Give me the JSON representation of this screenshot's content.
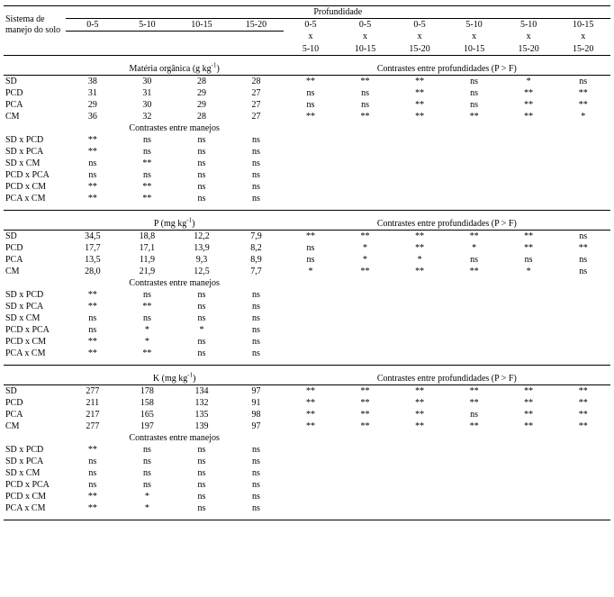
{
  "layout": {
    "columns": [
      "label",
      "d1",
      "d2",
      "d3",
      "d4",
      "c1",
      "c2",
      "c3",
      "c4",
      "c5",
      "c6"
    ],
    "col_widths": {
      "label": 68,
      "d": 60,
      "c": 60
    },
    "border_color": "#000000",
    "bg": "#ffffff",
    "font_family": "Times New Roman",
    "base_fontsize": 10
  },
  "header": {
    "rowspan_label": "Sistema de manejo do solo",
    "top": "Profundidade",
    "depths": [
      "0-5",
      "5-10",
      "10-15",
      "15-20",
      "0-5",
      "0-5",
      "0-5",
      "5-10",
      "5-10",
      "10-15"
    ],
    "x": [
      "",
      "",
      "",
      "",
      "x",
      "x",
      "x",
      "x",
      "x",
      "x"
    ],
    "depth_pairs": [
      "",
      "",
      "",
      "",
      "5-10",
      "10-15",
      "15-20",
      "10-15",
      "15-20",
      "15-20"
    ]
  },
  "sections": [
    {
      "left_title": "Matéria orgânica (g kg",
      "left_title_sup": "-1",
      "left_title_end": ")",
      "right_title": "Contrastes entre profundidades (P > F)",
      "data_rows": [
        {
          "label": "SD",
          "vals": [
            "38",
            "30",
            "28",
            "28"
          ],
          "con": [
            "**",
            "**",
            "**",
            "ns",
            "*",
            "ns"
          ]
        },
        {
          "label": "PCD",
          "vals": [
            "31",
            "31",
            "29",
            "27"
          ],
          "con": [
            "ns",
            "ns",
            "**",
            "ns",
            "**",
            "**"
          ]
        },
        {
          "label": "PCA",
          "vals": [
            "29",
            "30",
            "29",
            "27"
          ],
          "con": [
            "ns",
            "ns",
            "**",
            "ns",
            "**",
            "**"
          ]
        },
        {
          "label": "CM",
          "vals": [
            "36",
            "32",
            "28",
            "27"
          ],
          "con": [
            "**",
            "**",
            "**",
            "**",
            "**",
            "*"
          ]
        }
      ],
      "contrast_title": "Contrastes entre manejos",
      "contrast_rows": [
        {
          "label": "SD x PCD",
          "vals": [
            "**",
            "ns",
            "ns",
            "ns"
          ]
        },
        {
          "label": "SD x PCA",
          "vals": [
            "**",
            "ns",
            "ns",
            "ns"
          ]
        },
        {
          "label": "SD x CM",
          "vals": [
            "ns",
            "**",
            "ns",
            "ns"
          ]
        },
        {
          "label": "PCD x PCA",
          "vals": [
            "ns",
            "ns",
            "ns",
            "ns"
          ]
        },
        {
          "label": "PCD x CM",
          "vals": [
            "**",
            "**",
            "ns",
            "ns"
          ]
        },
        {
          "label": "PCA x CM",
          "vals": [
            "**",
            "**",
            "ns",
            "ns"
          ]
        }
      ]
    },
    {
      "left_title": "P (mg kg",
      "left_title_sup": "-1",
      "left_title_end": ")",
      "right_title": "Contrastes entre profundidades (P > F)",
      "data_rows": [
        {
          "label": "SD",
          "vals": [
            "34,5",
            "18,8",
            "12,2",
            "7,9"
          ],
          "con": [
            "**",
            "**",
            "**",
            "**",
            "**",
            "ns"
          ]
        },
        {
          "label": "PCD",
          "vals": [
            "17,7",
            "17,1",
            "13,9",
            "8,2"
          ],
          "con": [
            "ns",
            "*",
            "**",
            "*",
            "**",
            "**"
          ]
        },
        {
          "label": "PCA",
          "vals": [
            "13,5",
            "11,9",
            "9,3",
            "8,9"
          ],
          "con": [
            "ns",
            "*",
            "*",
            "ns",
            "ns",
            "ns"
          ]
        },
        {
          "label": "CM",
          "vals": [
            "28,0",
            "21,9",
            "12,5",
            "7,7"
          ],
          "con": [
            "*",
            "**",
            "**",
            "**",
            "*",
            "ns"
          ]
        }
      ],
      "contrast_title": "Contrastes entre manejos",
      "contrast_rows": [
        {
          "label": "SD x PCD",
          "vals": [
            "**",
            "ns",
            "ns",
            "ns"
          ]
        },
        {
          "label": "SD x PCA",
          "vals": [
            "**",
            "**",
            "ns",
            "ns"
          ]
        },
        {
          "label": "SD x  CM",
          "vals": [
            "ns",
            "ns",
            "ns",
            "ns"
          ]
        },
        {
          "label": "PCD x PCA",
          "vals": [
            "ns",
            "*",
            "*",
            "ns"
          ]
        },
        {
          "label": "PCD x CM",
          "vals": [
            "**",
            "*",
            "ns",
            "ns"
          ]
        },
        {
          "label": "PCA x CM",
          "vals": [
            "**",
            "**",
            "ns",
            "ns"
          ]
        }
      ]
    },
    {
      "left_title": "K (mg kg",
      "left_title_sup": "-1",
      "left_title_end": ")",
      "right_title": "Contrastes entre profundidades (P > F)",
      "data_rows": [
        {
          "label": "SD",
          "vals": [
            "277",
            "178",
            "134",
            "97"
          ],
          "con": [
            "**",
            "**",
            "**",
            "**",
            "**",
            "**"
          ]
        },
        {
          "label": "PCD",
          "vals": [
            "211",
            "158",
            "132",
            "91"
          ],
          "con": [
            "**",
            "**",
            "**",
            "**",
            "**",
            "**"
          ]
        },
        {
          "label": "PCA",
          "vals": [
            "217",
            "165",
            "135",
            "98"
          ],
          "con": [
            "**",
            "**",
            "**",
            "ns",
            "**",
            "**"
          ]
        },
        {
          "label": "CM",
          "vals": [
            "277",
            "197",
            "139",
            "97"
          ],
          "con": [
            "**",
            "**",
            "**",
            "**",
            "**",
            "**"
          ]
        }
      ],
      "contrast_title": "Contrastes entre manejos",
      "contrast_rows": [
        {
          "label": "SD x PCD",
          "vals": [
            "**",
            "ns",
            "ns",
            "ns"
          ]
        },
        {
          "label": "SD x PCA",
          "vals": [
            "ns",
            "ns",
            "ns",
            "ns"
          ]
        },
        {
          "label": "SD x CM",
          "vals": [
            "ns",
            "ns",
            "ns",
            "ns"
          ]
        },
        {
          "label": "PCD x PCA",
          "vals": [
            "ns",
            "ns",
            "ns",
            "ns"
          ]
        },
        {
          "label": "PCD x CM",
          "vals": [
            "**",
            "*",
            "ns",
            "ns"
          ]
        },
        {
          "label": "PCA x CM",
          "vals": [
            "**",
            "*",
            "ns",
            "ns"
          ]
        }
      ]
    }
  ]
}
